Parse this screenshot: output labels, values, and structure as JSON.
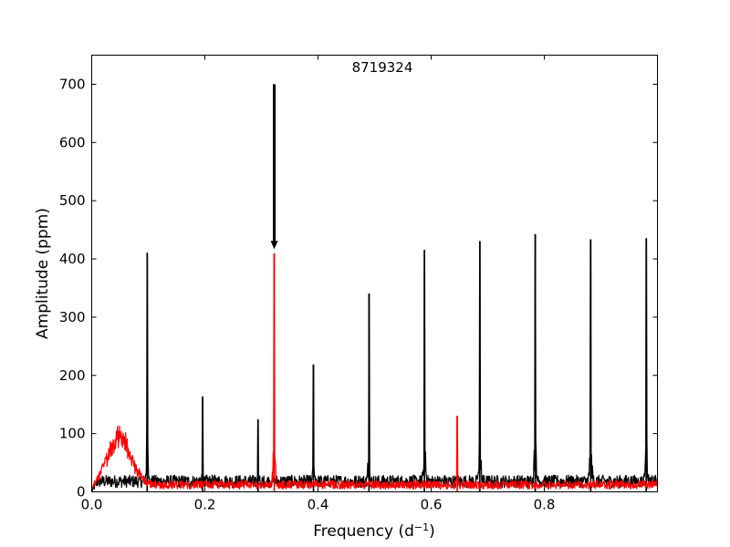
{
  "chart_data": {
    "type": "line",
    "title": "8719324",
    "xlabel": "Frequency  (d",
    "xlabel_sup": "−1",
    "xlabel_end": ")",
    "ylabel": "Amplitude  (ppm)",
    "xlim": [
      0.0,
      0.9999
    ],
    "ylim": [
      0,
      750
    ],
    "xticks": [
      0.0,
      0.2,
      0.4,
      0.6,
      0.8
    ],
    "xtick_labels": [
      "0.0",
      "0.2",
      "0.4",
      "0.6",
      "0.8"
    ],
    "yticks": [
      0,
      100,
      200,
      300,
      400,
      500,
      600,
      700
    ],
    "ytick_labels": [
      "0",
      "100",
      "200",
      "300",
      "400",
      "500",
      "600",
      "700"
    ],
    "grid": false,
    "series": [
      {
        "color": "#000000",
        "baseline": 18,
        "peaks": [
          {
            "x": 0.098,
            "y": 410
          },
          {
            "x": 0.196,
            "y": 163
          },
          {
            "x": 0.294,
            "y": 124
          },
          {
            "x": 0.392,
            "y": 218
          },
          {
            "x": 0.49,
            "y": 340
          },
          {
            "x": 0.588,
            "y": 415
          },
          {
            "x": 0.686,
            "y": 430
          },
          {
            "x": 0.784,
            "y": 442
          },
          {
            "x": 0.882,
            "y": 433
          },
          {
            "x": 0.98,
            "y": 435
          }
        ]
      },
      {
        "color": "#ff0000",
        "baseline": 12,
        "peaks": [
          {
            "x": 0.3226,
            "y": 409
          },
          {
            "x": 0.646,
            "y": 130
          }
        ],
        "humps": [
          {
            "x": 0.04,
            "y": 60
          },
          {
            "x": 0.06,
            "y": 50
          }
        ]
      }
    ],
    "annotations": [
      {
        "type": "arrow",
        "x": 0.3226,
        "y_start": 700,
        "y_end": 420,
        "color": "#000000"
      }
    ]
  }
}
